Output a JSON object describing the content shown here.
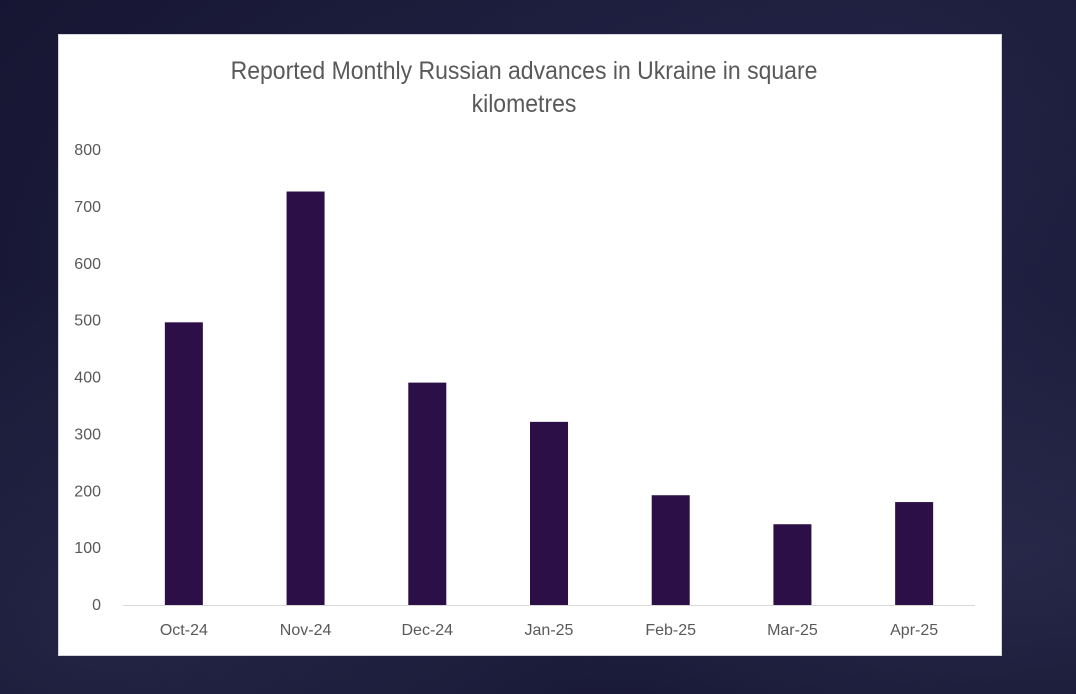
{
  "chart_data": {
    "type": "bar",
    "title": "Reported Monthly Russian advances in Ukraine in square kilometres",
    "title_lines": [
      "Reported Monthly Russian advances in Ukraine in square",
      "kilometres"
    ],
    "categories": [
      "Oct-24",
      "Nov-24",
      "Dec-24",
      "Jan-25",
      "Feb-25",
      "Mar-25",
      "Apr-25"
    ],
    "values": [
      497,
      727,
      391,
      322,
      193,
      142,
      181
    ],
    "ylim": [
      0,
      800
    ],
    "yticks": [
      0,
      100,
      200,
      300,
      400,
      500,
      600,
      700,
      800
    ],
    "grid": false,
    "legend": "none",
    "bar_color": "#2d0f47",
    "axis_color": "#d9d9d9"
  }
}
